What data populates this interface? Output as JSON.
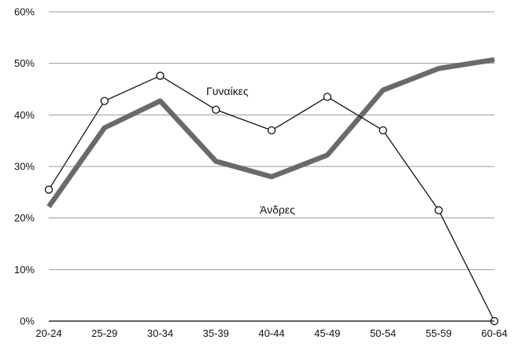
{
  "chart_data": {
    "type": "line",
    "categories": [
      "20-24",
      "25-29",
      "30-34",
      "35-39",
      "40-44",
      "45-49",
      "50-54",
      "55-59",
      "60-64"
    ],
    "ylim": [
      0,
      60
    ],
    "yticks": [
      0,
      10,
      20,
      30,
      40,
      50,
      60
    ],
    "ytick_labels": [
      "0%",
      "10%",
      "20%",
      "30%",
      "40%",
      "50%",
      "60%"
    ],
    "grid": true,
    "series": [
      {
        "name": "Γυναίκες",
        "values": [
          25.5,
          42.7,
          47.6,
          41,
          37,
          43.5,
          37,
          21.5,
          0
        ],
        "color": "#111111",
        "style": "thin line with hollow circle markers"
      },
      {
        "name": "Άνδρες",
        "values": [
          22.2,
          37.5,
          42.7,
          31,
          28,
          32.2,
          44.8,
          49,
          50.7
        ],
        "color": "#6a6a6a",
        "style": "thick line"
      }
    ],
    "annotations": [
      "Γυναίκες",
      "Άνδρες"
    ]
  }
}
